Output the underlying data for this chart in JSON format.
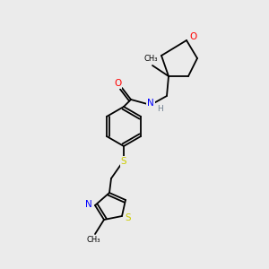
{
  "bg_color": "#ebebeb",
  "atom_colors": {
    "C": "#000000",
    "H": "#708090",
    "N": "#0000ff",
    "O": "#ff0000",
    "S": "#cccc00"
  },
  "bond_color": "#000000",
  "font_size_atom": 7.5,
  "font_size_h": 6.5,
  "font_size_methyl": 6.0
}
